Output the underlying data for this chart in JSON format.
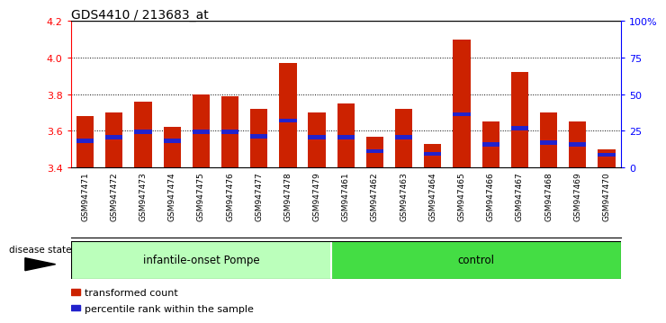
{
  "title": "GDS4410 / 213683_at",
  "samples": [
    "GSM947471",
    "GSM947472",
    "GSM947473",
    "GSM947474",
    "GSM947475",
    "GSM947476",
    "GSM947477",
    "GSM947478",
    "GSM947479",
    "GSM947461",
    "GSM947462",
    "GSM947463",
    "GSM947464",
    "GSM947465",
    "GSM947466",
    "GSM947467",
    "GSM947468",
    "GSM947469",
    "GSM947470"
  ],
  "red_values": [
    3.68,
    3.7,
    3.76,
    3.62,
    3.8,
    3.79,
    3.72,
    3.97,
    3.7,
    3.75,
    3.57,
    3.72,
    3.53,
    4.1,
    3.65,
    3.92,
    3.7,
    3.65,
    3.5
  ],
  "blue_values": [
    3.545,
    3.565,
    3.595,
    3.545,
    3.595,
    3.595,
    3.57,
    3.655,
    3.565,
    3.565,
    3.49,
    3.565,
    3.475,
    3.69,
    3.525,
    3.615,
    3.535,
    3.525,
    3.47
  ],
  "ymin": 3.4,
  "ymax": 4.2,
  "yticks_left": [
    3.4,
    3.6,
    3.8,
    4.0,
    4.2
  ],
  "yticks_right": [
    0,
    25,
    50,
    75,
    100
  ],
  "ytick_labels_right": [
    "0",
    "25",
    "50",
    "75",
    "100%"
  ],
  "bar_color": "#cc2200",
  "blue_color": "#2222cc",
  "group1_label": "infantile-onset Pompe",
  "group2_label": "control",
  "group1_color": "#bbffbb",
  "group2_color": "#44dd44",
  "disease_state_label": "disease state",
  "legend1": "transformed count",
  "legend2": "percentile rank within the sample",
  "bg_color": "#cccccc",
  "bar_width": 0.6,
  "n_group1": 9,
  "n_group2": 10
}
